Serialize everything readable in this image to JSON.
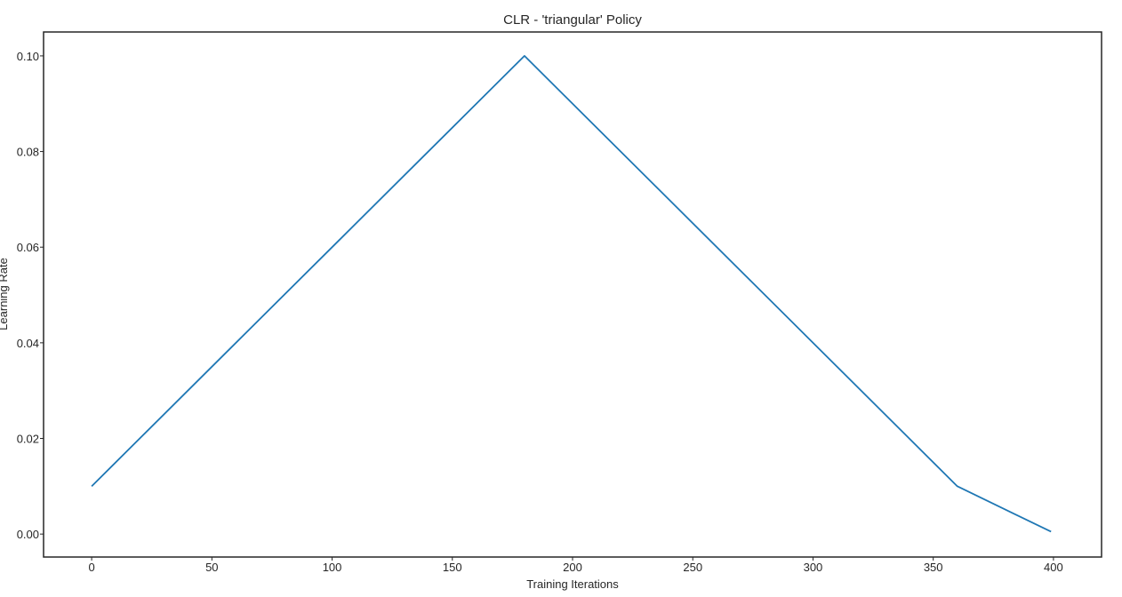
{
  "chart_data": {
    "type": "line",
    "title": "CLR - 'triangular' Policy",
    "xlabel": "Training Iterations",
    "ylabel": "Learning Rate",
    "xlim": [
      -20,
      420
    ],
    "ylim": [
      -0.0048,
      0.105
    ],
    "xticks": [
      "0",
      "50",
      "100",
      "150",
      "200",
      "250",
      "300",
      "350",
      "400"
    ],
    "yticks": [
      "0.00",
      "0.02",
      "0.04",
      "0.06",
      "0.08",
      "0.10"
    ],
    "grid": false,
    "series": [
      {
        "color": "#1f77b4",
        "x": [
          0,
          180,
          360,
          399
        ],
        "y": [
          0.01,
          0.1,
          0.01,
          0.0005
        ]
      }
    ]
  }
}
